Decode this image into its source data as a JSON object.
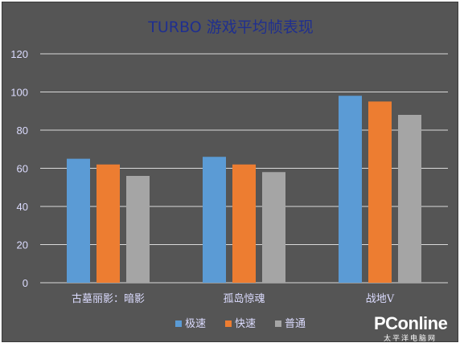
{
  "chart_data": {
    "type": "bar",
    "title": "TURBO 游戏平均帧表现",
    "xlabel": "",
    "ylabel": "",
    "ylim": [
      0,
      120
    ],
    "yticks": [
      0,
      20,
      40,
      60,
      80,
      100,
      120
    ],
    "grid": true,
    "legend_position": "bottom",
    "categories": [
      "古墓丽影：暗影",
      "孤岛惊魂",
      "战地V"
    ],
    "series": [
      {
        "name": "极速",
        "color": "#5b9bd5",
        "values": [
          65,
          66,
          98
        ]
      },
      {
        "name": "快速",
        "color": "#ed7d31",
        "values": [
          62,
          62,
          95
        ]
      },
      {
        "name": "普通",
        "color": "#a5a5a5",
        "values": [
          56,
          58,
          88
        ]
      }
    ],
    "title_color": "#1f2f8f",
    "background_color": "#555555"
  },
  "watermark": {
    "brand": "PConline",
    "subtitle": "太平洋电脑网"
  }
}
